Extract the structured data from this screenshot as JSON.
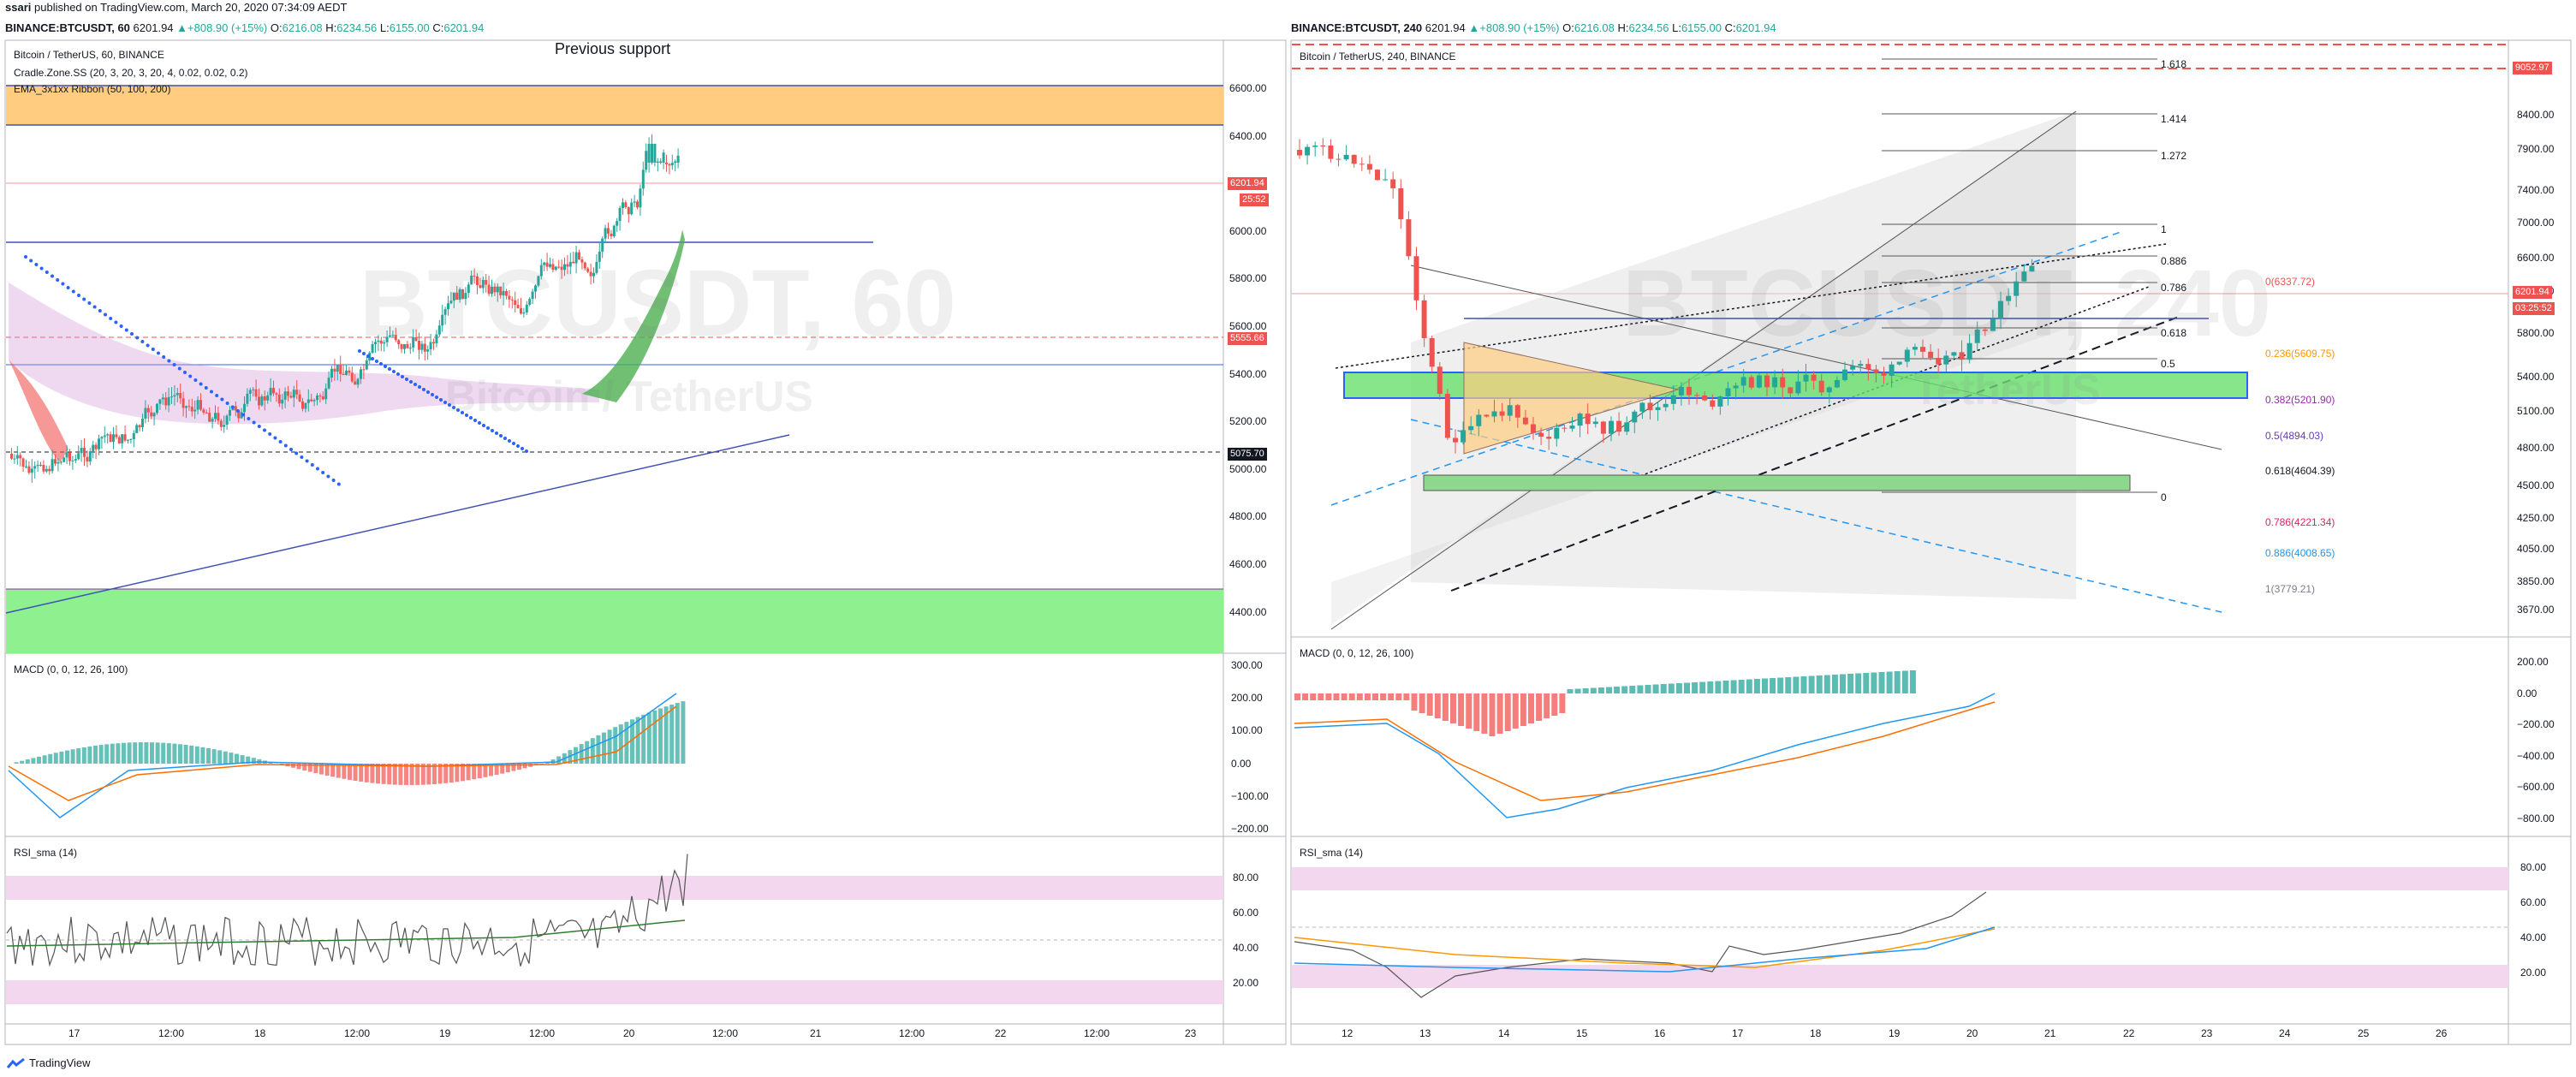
{
  "header": {
    "user": "ssari",
    "published": "published on TradingView.com, March 20, 2020 07:34:09 AEDT"
  },
  "left": {
    "symbol": "BINANCE:BTCUSDT, 60",
    "price": "6201.94",
    "change": "▲+808.90 (+15%)",
    "o_label": "O:",
    "o": "6216.08",
    "h_label": "H:",
    "h": "6234.56",
    "l_label": "L:",
    "l": "6155.00",
    "c_label": "C:",
    "c": "6201.94",
    "title": "Bitcoin / TetherUS, 60, BINANCE",
    "indicators": [
      "Cradle.Zone.SS (20, 3, 20, 3, 20, 4, 0.02, 0.02, 0.2)",
      "EMA_3x1xx Ribbon (50, 100, 200)"
    ],
    "annotation": "Previous support",
    "watermark1": "BTCUSDT, 60",
    "watermark2": "Bitcoin / TetherUS",
    "price_ticks": [
      "6600.00",
      "6400.00",
      "6200.00",
      "6000.00",
      "5800.00",
      "5600.00",
      "5400.00",
      "5200.00",
      "5000.00",
      "4800.00",
      "4600.00",
      "4400.00"
    ],
    "tag_price": "6201.94",
    "tag_time": "25:52",
    "tag_5555": "5555.66",
    "tag_5075": "5075.70",
    "macd_title": "MACD (0, 0, 12, 26, 100)",
    "macd_ticks": [
      "300.00",
      "200.00",
      "100.00",
      "0.00",
      "−100.00",
      "−200.00"
    ],
    "rsi_title": "RSI_sma (14)",
    "rsi_ticks": [
      "80.00",
      "60.00",
      "40.00",
      "20.00"
    ],
    "time_ticks": [
      "17",
      "12:00",
      "18",
      "12:00",
      "19",
      "12:00",
      "20",
      "12:00",
      "21",
      "12:00",
      "22",
      "12:00",
      "23"
    ]
  },
  "right": {
    "symbol": "BINANCE:BTCUSDT, 240",
    "price": "6201.94",
    "change": "▲+808.90 (+15%)",
    "o_label": "O:",
    "o": "6216.08",
    "h_label": "H:",
    "h": "6234.56",
    "l_label": "L:",
    "l": "6155.00",
    "c_label": "C:",
    "c": "6201.94",
    "title": "Bitcoin / TetherUS, 240, BINANCE",
    "watermark1": "BTCUSDT, 240",
    "watermark2": "TetherUS",
    "price_ticks": [
      "8400.00",
      "7900.00",
      "7400.00",
      "7000.00",
      "6600.00",
      "6200.00",
      "5800.00",
      "5400.00",
      "5100.00",
      "4800.00",
      "4500.00",
      "4250.00",
      "4050.00",
      "3850.00",
      "3670.00"
    ],
    "tag_price": "6201.94",
    "tag_time": "03:25:52",
    "tag_9052": "9052.97",
    "fib_up": [
      "1.618",
      "1.414",
      "1.272",
      "1",
      "0.886",
      "0.786",
      "0.618",
      "0.5",
      "0"
    ],
    "fib_right": [
      "0(6337.72)",
      "0.236(5609.75)",
      "0.382(5201.90)",
      "0.5(4894.03)",
      "0.618(4604.39)",
      "0.786(4221.34)",
      "0.886(4008.65)",
      "1(3779.21)"
    ],
    "macd_title": "MACD (0, 0, 12, 26, 100)",
    "macd_ticks": [
      "200.00",
      "0.00",
      "−200.00",
      "−400.00",
      "−600.00",
      "−800.00"
    ],
    "rsi_title": "RSI_sma (14)",
    "rsi_ticks": [
      "80.00",
      "60.00",
      "40.00",
      "20.00"
    ],
    "time_ticks": [
      "12",
      "13",
      "14",
      "15",
      "16",
      "17",
      "18",
      "19",
      "20",
      "21",
      "22",
      "23",
      "24",
      "25",
      "26"
    ]
  },
  "footer": {
    "brand": "TradingView"
  },
  "colors": {
    "green": "#26a69a",
    "red": "#ef5350",
    "accent": "#2962ff"
  }
}
